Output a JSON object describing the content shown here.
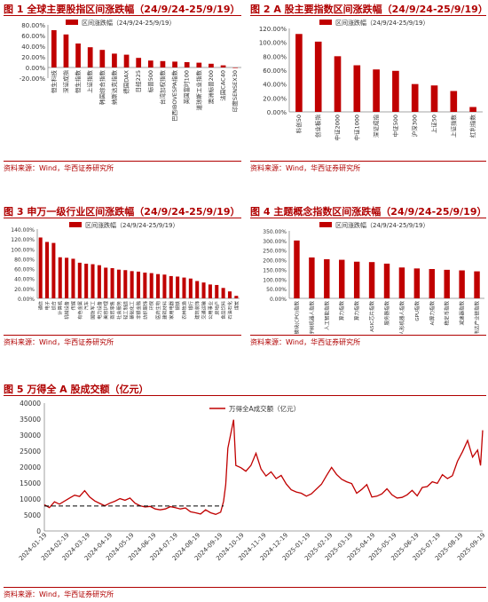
{
  "charts": [
    {
      "title": "图 1 全球主要股指区间涨跌幅（24/9/24-25/9/19）",
      "source": "资料来源：Wind，华西证券研究所",
      "chart_data": {
        "type": "bar",
        "legend": "区间涨跌幅（24/9/24-25/9/19）",
        "legend_position": "top",
        "categories": [
          "恒生科技",
          "深证成指",
          "恒生指数",
          "上证指数",
          "韩国综合指数",
          "纳斯达克指数",
          "德国DAX",
          "日经225",
          "标普500",
          "台湾加权指数",
          "巴西IBOVESPA指数",
          "英国富时100",
          "道琼斯工业指数",
          "澳洲标普200",
          "法国CAC40",
          "印度SENSEX30"
        ],
        "values": [
          70,
          62,
          45,
          38,
          33,
          26,
          24,
          18,
          13,
          12,
          11,
          10,
          9,
          7,
          4,
          0
        ],
        "ylim": [
          -20,
          80
        ],
        "yticks": [
          "-20.00%",
          "0.00%",
          "20.00%",
          "40.00%",
          "60.00%",
          "80.00%"
        ],
        "grid": false,
        "bar_color": "#c00000"
      }
    },
    {
      "title": "图 2 A 股主要指数区间涨跌幅（24/9/24-25/9/19）",
      "source": "资料来源：Wind，华西证券研究所",
      "chart_data": {
        "type": "bar",
        "legend": "区间涨跌幅（24/9/24-25/9/19）",
        "legend_position": "top",
        "categories": [
          "科创50",
          "创业板指",
          "中证2000",
          "中证1000",
          "深证成指",
          "中证500",
          "沪深300",
          "上证50",
          "上证指数",
          "红利指数"
        ],
        "values": [
          112,
          101,
          80,
          67,
          61,
          59,
          40,
          38,
          30,
          7
        ],
        "ylim": [
          0,
          120
        ],
        "yticks": [
          "0.00%",
          "20.00%",
          "40.00%",
          "60.00%",
          "80.00%",
          "100.00%",
          "120.00%"
        ],
        "grid": false,
        "bar_color": "#c00000"
      }
    },
    {
      "title": "图 3 申万一级行业区间涨跌幅（24/9/24-25/9/19）",
      "source": "资料来源：Wind，华西证券研究所",
      "chart_data": {
        "type": "bar",
        "legend": "区间涨跌幅（24/9/24-25/9/19）",
        "legend_position": "top",
        "categories": [
          "通信",
          "电子",
          "综合",
          "计算机",
          "机械设备",
          "传媒",
          "有色金属",
          "汽车",
          "国防军工",
          "电力设备",
          "美容护理",
          "商贸零售",
          "社会服务",
          "轻工制造",
          "基础化工",
          "非银金融",
          "纺织服饰",
          "环保",
          "医药生物",
          "建筑材料",
          "家用电器",
          "钢铁",
          "农林牧渔",
          "银行",
          "建筑装饰",
          "交通运输",
          "公用事业",
          "房地产",
          "食品饮料",
          "石油石化",
          "煤炭"
        ],
        "category_labels": [
          "通信",
          "电子",
          "综合",
          "计算机",
          "机械设备",
          "传媒",
          "有色金属",
          "汽车",
          "国防军工",
          "电力设备",
          "美容护理",
          "商贸零售",
          "社会服务",
          "轻工制造",
          "基础化工",
          "非银金融",
          "纺织服饰",
          "环保",
          "医药生物",
          "建筑材料",
          "家用电器",
          "钢铁",
          "农林牧渔",
          "银行",
          "建筑装饰",
          "交通运输",
          "公用事业",
          "房地产",
          "食品饮料",
          "石油石化",
          "煤炭"
        ],
        "values": [
          123,
          114,
          112,
          83,
          82,
          80,
          72,
          70,
          69,
          67,
          62,
          61,
          58,
          57,
          55,
          54,
          52,
          51,
          49,
          48,
          45,
          44,
          42,
          40,
          35,
          32,
          28,
          27,
          21,
          14,
          5
        ],
        "ylim": [
          0,
          140
        ],
        "yticks": [
          "0.00%",
          "20.00%",
          "40.00%",
          "60.00%",
          "80.00%",
          "100.00%",
          "120.00%",
          "140.00%"
        ],
        "grid": false,
        "bar_color": "#c00000"
      }
    },
    {
      "title": "图 4 主题概念指数区间涨跌幅（24/9/24-25/9/19）",
      "source": "资料来源：Wind，华西证券研究所",
      "chart_data": {
        "type": "bar",
        "legend": "区间涨跌幅（24/9/24-25/9/19）",
        "legend_position": "top",
        "categories": [
          "光模块(CPO)指数",
          "宇树机器人指数",
          "人工智能指数",
          "算力指数",
          "算力指数",
          "ASIC芯片指数",
          "服务器指数",
          "人形机器人指数",
          "GPU指数",
          "AI算力指数",
          "稳定币指数",
          "减速器指数",
          "英伟达产业链指数"
        ],
        "values": [
          300,
          212,
          203,
          200,
          190,
          188,
          180,
          160,
          155,
          152,
          148,
          145,
          140
        ],
        "ylim": [
          0,
          350
        ],
        "yticks": [
          "0.00%",
          "50.00%",
          "100.00%",
          "150.00%",
          "200.00%",
          "250.00%",
          "300.00%",
          "350.00%"
        ],
        "grid": false,
        "bar_color": "#c00000"
      }
    },
    {
      "title": "图 5 万得全 A 股成交额（亿元）",
      "source": "资料来源：Wind，华西证券研究所",
      "chart_data": {
        "type": "line",
        "legend": "万得全A成交额（亿元）",
        "legend_position": "top-right",
        "x_ticks": [
          "2024-01-19",
          "2024-02-19",
          "2024-03-19",
          "2024-04-19",
          "2024-05-19",
          "2024-06-19",
          "2024-07-19",
          "2024-08-19",
          "2024-09-19",
          "2024-10-19",
          "2024-11-19",
          "2024-12-19",
          "2025-01-19",
          "2025-02-19",
          "2025-03-19",
          "2025-04-19",
          "2025-05-19",
          "2025-06-19",
          "2025-07-19",
          "2025-08-19",
          "2025-09-19"
        ],
        "ylim": [
          0,
          40000
        ],
        "yticks": [
          "0",
          "5000",
          "10000",
          "15000",
          "20000",
          "25000",
          "30000",
          "35000",
          "40000"
        ],
        "grid": false,
        "series": [
          {
            "color": "#c00000",
            "points": [
              [
                "2024-01-19",
                8200
              ],
              [
                "2024-01-26",
                7300
              ],
              [
                "2024-02-02",
                9100
              ],
              [
                "2024-02-09",
                8400
              ],
              [
                "2024-02-23",
                10300
              ],
              [
                "2024-03-01",
                11200
              ],
              [
                "2024-03-08",
                10800
              ],
              [
                "2024-03-15",
                12600
              ],
              [
                "2024-03-22",
                10600
              ],
              [
                "2024-03-29",
                9400
              ],
              [
                "2024-04-05",
                8600
              ],
              [
                "2024-04-12",
                7900
              ],
              [
                "2024-04-19",
                8700
              ],
              [
                "2024-04-26",
                9300
              ],
              [
                "2024-05-03",
                10100
              ],
              [
                "2024-05-10",
                9600
              ],
              [
                "2024-05-17",
                10300
              ],
              [
                "2024-05-24",
                8700
              ],
              [
                "2024-05-31",
                7900
              ],
              [
                "2024-06-07",
                7500
              ],
              [
                "2024-06-14",
                7700
              ],
              [
                "2024-06-21",
                6900
              ],
              [
                "2024-06-28",
                6600
              ],
              [
                "2024-07-05",
                6900
              ],
              [
                "2024-07-12",
                7600
              ],
              [
                "2024-07-19",
                7300
              ],
              [
                "2024-07-26",
                6900
              ],
              [
                "2024-08-02",
                7200
              ],
              [
                "2024-08-09",
                6000
              ],
              [
                "2024-08-16",
                5700
              ],
              [
                "2024-08-23",
                5300
              ],
              [
                "2024-08-30",
                6600
              ],
              [
                "2024-09-06",
                5700
              ],
              [
                "2024-09-13",
                5200
              ],
              [
                "2024-09-20",
                5900
              ],
              [
                "2024-09-24",
                9300
              ],
              [
                "2024-09-27",
                14500
              ],
              [
                "2024-09-30",
                25900
              ],
              [
                "2024-10-08",
                34800
              ],
              [
                "2024-10-11",
                20500
              ],
              [
                "2024-10-18",
                19800
              ],
              [
                "2024-10-25",
                18700
              ],
              [
                "2024-11-01",
                20500
              ],
              [
                "2024-11-08",
                24300
              ],
              [
                "2024-11-15",
                19400
              ],
              [
                "2024-11-22",
                17200
              ],
              [
                "2024-11-29",
                18500
              ],
              [
                "2024-12-06",
                16400
              ],
              [
                "2024-12-13",
                17400
              ],
              [
                "2024-12-20",
                14700
              ],
              [
                "2024-12-27",
                12900
              ],
              [
                "2025-01-03",
                12200
              ],
              [
                "2025-01-10",
                11800
              ],
              [
                "2025-01-17",
                10900
              ],
              [
                "2025-01-24",
                11600
              ],
              [
                "2025-02-07",
                14600
              ],
              [
                "2025-02-14",
                17300
              ],
              [
                "2025-02-21",
                19900
              ],
              [
                "2025-02-28",
                17700
              ],
              [
                "2025-03-07",
                16200
              ],
              [
                "2025-03-14",
                15400
              ],
              [
                "2025-03-21",
                14800
              ],
              [
                "2025-03-28",
                11800
              ],
              [
                "2025-04-04",
                13000
              ],
              [
                "2025-04-11",
                14500
              ],
              [
                "2025-04-18",
                10600
              ],
              [
                "2025-04-25",
                10900
              ],
              [
                "2025-05-02",
                11600
              ],
              [
                "2025-05-09",
                13200
              ],
              [
                "2025-05-16",
                11300
              ],
              [
                "2025-05-23",
                10300
              ],
              [
                "2025-05-30",
                10500
              ],
              [
                "2025-06-06",
                11300
              ],
              [
                "2025-06-13",
                12700
              ],
              [
                "2025-06-20",
                11000
              ],
              [
                "2025-06-27",
                13600
              ],
              [
                "2025-07-04",
                13900
              ],
              [
                "2025-07-11",
                15400
              ],
              [
                "2025-07-18",
                14900
              ],
              [
                "2025-07-25",
                17600
              ],
              [
                "2025-08-01",
                16400
              ],
              [
                "2025-08-08",
                17300
              ],
              [
                "2025-08-15",
                21800
              ],
              [
                "2025-08-22",
                24800
              ],
              [
                "2025-08-29",
                28300
              ],
              [
                "2025-09-05",
                23100
              ],
              [
                "2025-09-12",
                25300
              ],
              [
                "2025-09-16",
                20500
              ],
              [
                "2025-09-19",
                31500
              ]
            ]
          },
          {
            "color": "#000000",
            "dashed": true,
            "points": [
              [
                "2024-01-19",
                7800
              ],
              [
                "2024-09-24",
                7800
              ]
            ]
          }
        ]
      }
    }
  ]
}
